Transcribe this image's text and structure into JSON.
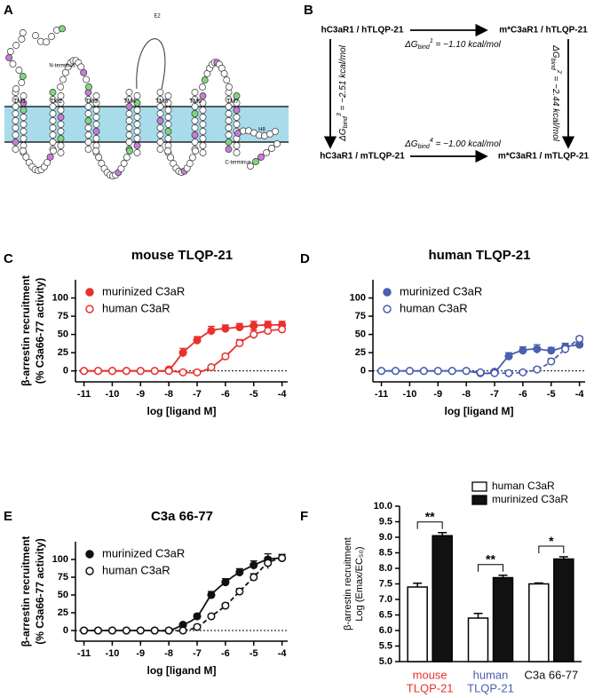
{
  "panel_labels": [
    "A",
    "B",
    "C",
    "D",
    "E",
    "F"
  ],
  "diagram_a": {
    "labels": [
      "N-terminus",
      "E2",
      "TM1",
      "TM2",
      "TM3",
      "TM4",
      "TM5",
      "TM6",
      "TM7",
      "H8",
      "C-terminus"
    ]
  },
  "diagram_b": {
    "nodes": [
      "hC3aR1 / hTLQP-21",
      "m*C3aR1 / hTLQP-21",
      "hC3aR1 / mTLQP-21",
      "m*C3aR1 / mTLQP-21"
    ],
    "edges": [
      {
        "symbol": "ΔG",
        "sub": "bind",
        "sup": "1",
        "text": " = −1.10 kcal/mol"
      },
      {
        "symbol": "ΔG",
        "sub": "bind",
        "sup": "2",
        "text": " = −2.44 kcal/mol"
      },
      {
        "symbol": "ΔG",
        "sub": "bind",
        "sup": "3",
        "text": " = −2.51 kcal/mol"
      },
      {
        "symbol": "ΔG",
        "sub": "bind",
        "sup": "4",
        "text": " = −1.00 kcal/mol"
      }
    ]
  },
  "chart_data": [
    {
      "type": "dose_response",
      "title": "mouse TLQP-21",
      "color": "#e8312f",
      "xlabel": "log [ligand M]",
      "ylabel": [
        "β-arrestin recruitment",
        "(% C3a66-77 activity)"
      ],
      "x": [
        -11,
        -10.5,
        -10,
        -9.5,
        -9,
        -8.5,
        -8,
        -7.5,
        -7,
        -6.5,
        -6,
        -5.5,
        -5,
        -4.5,
        -4
      ],
      "xlim": [
        -11.3,
        -3.8
      ],
      "xticks": [
        -11,
        -10,
        -9,
        -8,
        -7,
        -6,
        -5,
        -4
      ],
      "ylim": [
        -15,
        125
      ],
      "yticks": [
        0,
        25,
        50,
        75,
        100
      ],
      "reference_line": 0,
      "legend": "upper left",
      "series": [
        {
          "name": "murinized C3aR",
          "marker": "filled",
          "line": "solid",
          "values": [
            0,
            0,
            0,
            0,
            0,
            0,
            2,
            25,
            42,
            55,
            58,
            60,
            62,
            63,
            63
          ],
          "errors": [
            1,
            1,
            1,
            1,
            1,
            1,
            2,
            6,
            5,
            6,
            5,
            5,
            6,
            5,
            5
          ]
        },
        {
          "name": "human C3aR",
          "marker": "open",
          "line": "solid",
          "values": [
            0,
            0,
            0,
            0,
            0,
            0,
            0,
            -2,
            -2,
            5,
            20,
            38,
            50,
            55,
            57
          ],
          "errors": [
            1,
            1,
            1,
            1,
            1,
            1,
            1,
            2,
            2,
            2,
            3,
            5,
            6,
            5,
            4
          ]
        }
      ]
    },
    {
      "type": "dose_response",
      "title": "human TLQP-21",
      "color": "#4a5fad",
      "xlabel": "log [ligand M]",
      "x": [
        -11,
        -10.5,
        -10,
        -9.5,
        -9,
        -8.5,
        -8,
        -7.5,
        -7,
        -6.5,
        -6,
        -5.5,
        -5,
        -4.5,
        -4
      ],
      "xlim": [
        -11.3,
        -3.8
      ],
      "xticks": [
        -11,
        -10,
        -9,
        -8,
        -7,
        -6,
        -5,
        -4
      ],
      "ylim": [
        -15,
        125
      ],
      "yticks": [
        0,
        25,
        50,
        75,
        100
      ],
      "reference_line": 0,
      "legend": "upper left",
      "series": [
        {
          "name": "murinized C3aR",
          "marker": "filled",
          "line": "solid",
          "values": [
            0,
            0,
            0,
            0,
            0,
            0,
            0,
            -3,
            -1,
            20,
            28,
            30,
            28,
            33,
            36
          ],
          "errors": [
            1,
            1,
            1,
            1,
            1,
            1,
            1,
            2,
            2,
            5,
            5,
            6,
            4,
            5,
            4
          ]
        },
        {
          "name": "human C3aR",
          "marker": "open",
          "line": "dashed",
          "values": [
            0,
            0,
            0,
            0,
            0,
            0,
            0,
            -2,
            -3,
            -3,
            -2,
            2,
            13,
            30,
            44
          ],
          "errors": [
            1,
            1,
            1,
            1,
            1,
            1,
            1,
            2,
            2,
            2,
            2,
            3,
            4,
            6,
            3
          ]
        }
      ]
    },
    {
      "type": "dose_response",
      "title": "C3a 66-77",
      "color": "#111111",
      "xlabel": "log [ligand M]",
      "ylabel": [
        "β-arrestin recruitment",
        "(% C3a66-77 activity)"
      ],
      "x": [
        -11,
        -10.5,
        -10,
        -9.5,
        -9,
        -8.5,
        -8,
        -7.5,
        -7,
        -6.5,
        -6,
        -5.5,
        -5,
        -4.5,
        -4
      ],
      "xlim": [
        -11.3,
        -3.8
      ],
      "xticks": [
        -11,
        -10,
        -9,
        -8,
        -7,
        -6,
        -5,
        -4
      ],
      "ylim": [
        -15,
        125
      ],
      "yticks": [
        0,
        25,
        50,
        75,
        100
      ],
      "reference_line": 0,
      "legend": "upper left",
      "series": [
        {
          "name": "murinized C3aR",
          "marker": "filled",
          "line": "solid",
          "values": [
            0,
            0,
            0,
            0,
            0,
            0,
            0,
            8,
            20,
            50,
            68,
            82,
            92,
            100,
            102
          ],
          "errors": [
            1,
            1,
            1,
            1,
            1,
            1,
            1,
            2,
            3,
            5,
            5,
            5,
            6,
            8,
            5
          ]
        },
        {
          "name": "human C3aR",
          "marker": "open",
          "line": "dashed",
          "values": [
            0,
            0,
            0,
            0,
            0,
            0,
            0,
            0,
            5,
            20,
            35,
            55,
            75,
            95,
            102
          ],
          "errors": [
            1,
            1,
            1,
            1,
            1,
            1,
            1,
            1,
            2,
            2,
            3,
            4,
            5,
            8,
            5
          ]
        }
      ]
    },
    {
      "type": "bar",
      "ylabel": [
        "β-arrestin recruitment",
        "Log (Emax/EC₅₀)"
      ],
      "categories": [
        [
          "mouse",
          "TLQP-21"
        ],
        [
          "human",
          "TLQP-21"
        ],
        [
          "C3a 66-77"
        ]
      ],
      "category_colors": [
        "#e8312f",
        "#4a5fad",
        "#111111"
      ],
      "ylim": [
        5,
        10
      ],
      "yticks": [
        {
          "value": 5,
          "label": "5.0"
        },
        {
          "value": 5.5,
          "label": "5.5"
        },
        {
          "value": 6,
          "label": "6.0"
        },
        {
          "value": 6.5,
          "label": "6.5"
        },
        {
          "value": 7,
          "label": "7.0"
        },
        {
          "value": 7.5,
          "label": "7.5"
        },
        {
          "value": 8,
          "label": "8.0"
        },
        {
          "value": 8.5,
          "label": "8.5"
        },
        {
          "value": 9,
          "label": "9.0"
        },
        {
          "value": 9.5,
          "label": "9.5"
        },
        {
          "value": 10,
          "label": "10.0"
        }
      ],
      "legend": "upper right",
      "annotations": [
        "**",
        "**",
        "*"
      ],
      "series": [
        {
          "name": "human C3aR",
          "color": "#ffffff",
          "values": [
            7.4,
            6.4,
            7.5
          ],
          "errors": [
            0.12,
            0.15,
            0.03
          ]
        },
        {
          "name": "murinized C3aR",
          "color": "#111111",
          "values": [
            9.05,
            7.7,
            8.3
          ],
          "errors": [
            0.1,
            0.08,
            0.07
          ]
        }
      ]
    }
  ]
}
